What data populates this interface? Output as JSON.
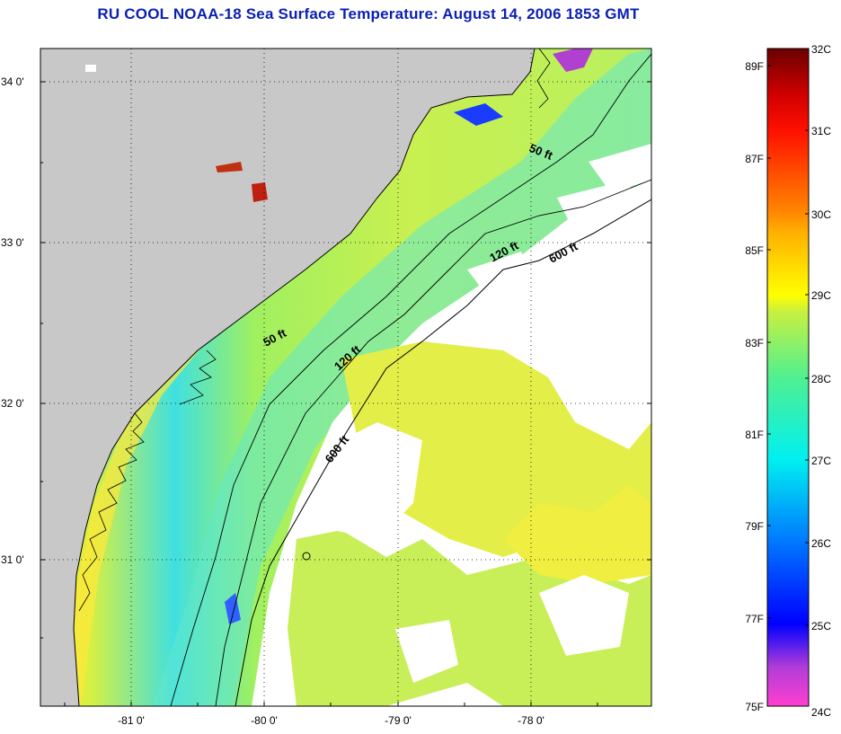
{
  "title": "RU COOL  NOAA-18  Sea Surface Temperature:  August 14, 2006 1853 GMT",
  "map": {
    "lat_labels": [
      "34 0'",
      "33 0'",
      "32 0'",
      "31 0'"
    ],
    "lon_labels": [
      "-81 0'",
      "-80 0'",
      "-79 0'",
      "-78 0'"
    ],
    "isobaths": [
      {
        "label": "50 ft"
      },
      {
        "label": "50 ft"
      },
      {
        "label": "120 ft"
      },
      {
        "label": "120 ft"
      },
      {
        "label": "600 ft"
      },
      {
        "label": "600 ft"
      }
    ],
    "colors": {
      "land": "#c8c8c8",
      "cloud": "#ffffff",
      "coast": "#000000"
    }
  },
  "colorbar": {
    "celsius": [
      "32C",
      "31C",
      "30C",
      "29C",
      "28C",
      "27C",
      "26C",
      "25C",
      "24C"
    ],
    "fahrenheit": [
      "89F",
      "87F",
      "85F",
      "83F",
      "81F",
      "79F",
      "77F",
      "75F"
    ],
    "stops": [
      "#ff3fd0",
      "#b03cd8",
      "#0000ff",
      "#0070ff",
      "#00e8f0",
      "#3ff0a0",
      "#b8f040",
      "#ffff00",
      "#ffb000",
      "#ff5a00",
      "#ff0000",
      "#c00000",
      "#6a0000"
    ]
  }
}
